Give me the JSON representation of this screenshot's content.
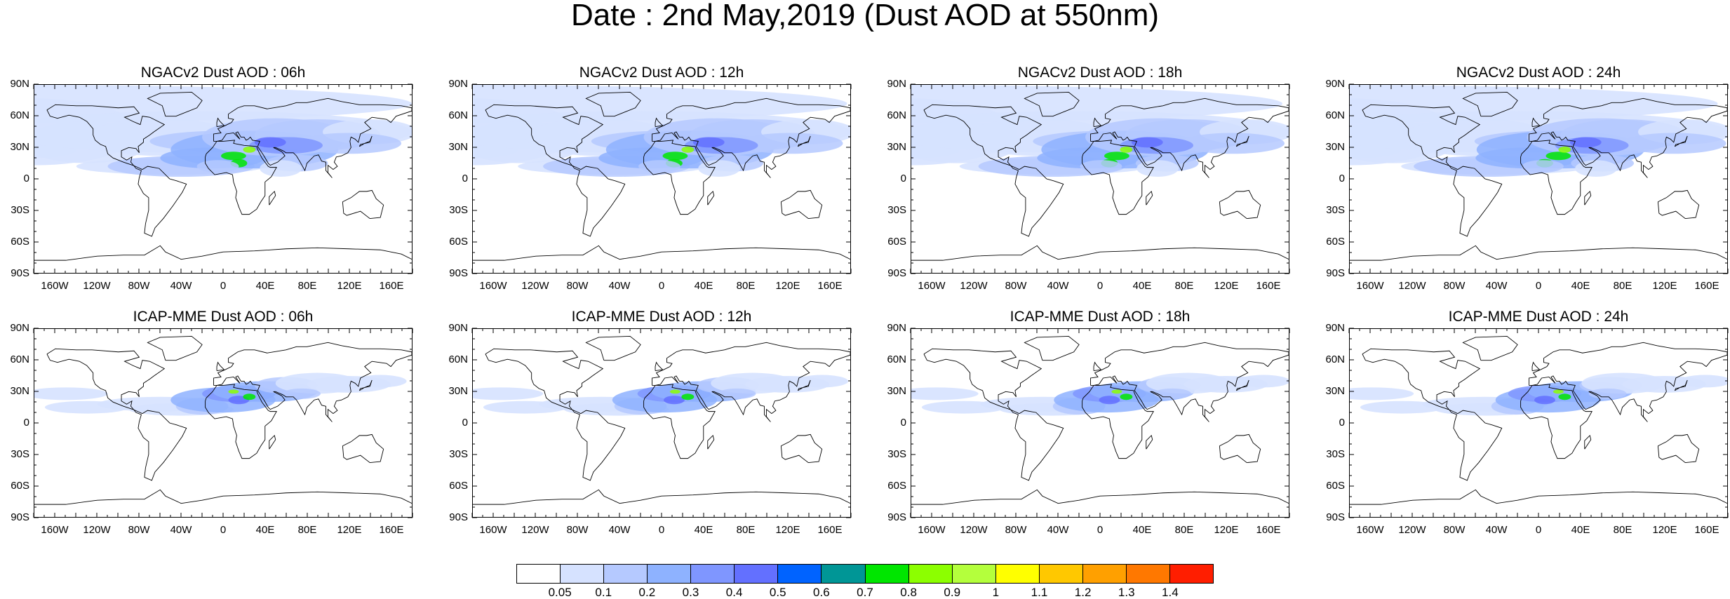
{
  "title": "Date : 2nd May,2019 (Dust AOD at 550nm)",
  "lat_labels": [
    "90N",
    "60N",
    "30N",
    "0",
    "30S",
    "60S",
    "90S"
  ],
  "lon_labels": [
    "160W",
    "120W",
    "80W",
    "40W",
    "0",
    "40E",
    "80E",
    "120E",
    "160E"
  ],
  "panels": [
    {
      "title": "NGACv2 Dust AOD : 06h",
      "model": "ngac",
      "hour": "06h"
    },
    {
      "title": "NGACv2 Dust AOD : 12h",
      "model": "ngac",
      "hour": "12h"
    },
    {
      "title": "NGACv2 Dust AOD : 18h",
      "model": "ngac",
      "hour": "18h"
    },
    {
      "title": "NGACv2 Dust AOD : 24h",
      "model": "ngac",
      "hour": "24h"
    },
    {
      "title": "ICAP-MME Dust AOD : 06h",
      "model": "icap",
      "hour": "06h"
    },
    {
      "title": "ICAP-MME Dust AOD : 12h",
      "model": "icap",
      "hour": "12h"
    },
    {
      "title": "ICAP-MME Dust AOD : 18h",
      "model": "icap",
      "hour": "18h"
    },
    {
      "title": "ICAP-MME Dust AOD : 24h",
      "model": "icap",
      "hour": "24h"
    }
  ],
  "colorbar": {
    "colors": [
      "#ffffff",
      "#d6e2ff",
      "#b5c9ff",
      "#8eb2ff",
      "#7f96ff",
      "#6370ff",
      "#0063ff",
      "#009696",
      "#00e600",
      "#8cff00",
      "#b4ff3c",
      "#ffff00",
      "#ffc800",
      "#ffa000",
      "#ff7800",
      "#ff1e00"
    ],
    "labels": [
      "0.05",
      "0.1",
      "0.2",
      "0.3",
      "0.4",
      "0.5",
      "0.6",
      "0.7",
      "0.8",
      "0.9",
      "1",
      "1.1",
      "1.2",
      "1.3",
      "1.4"
    ]
  }
}
